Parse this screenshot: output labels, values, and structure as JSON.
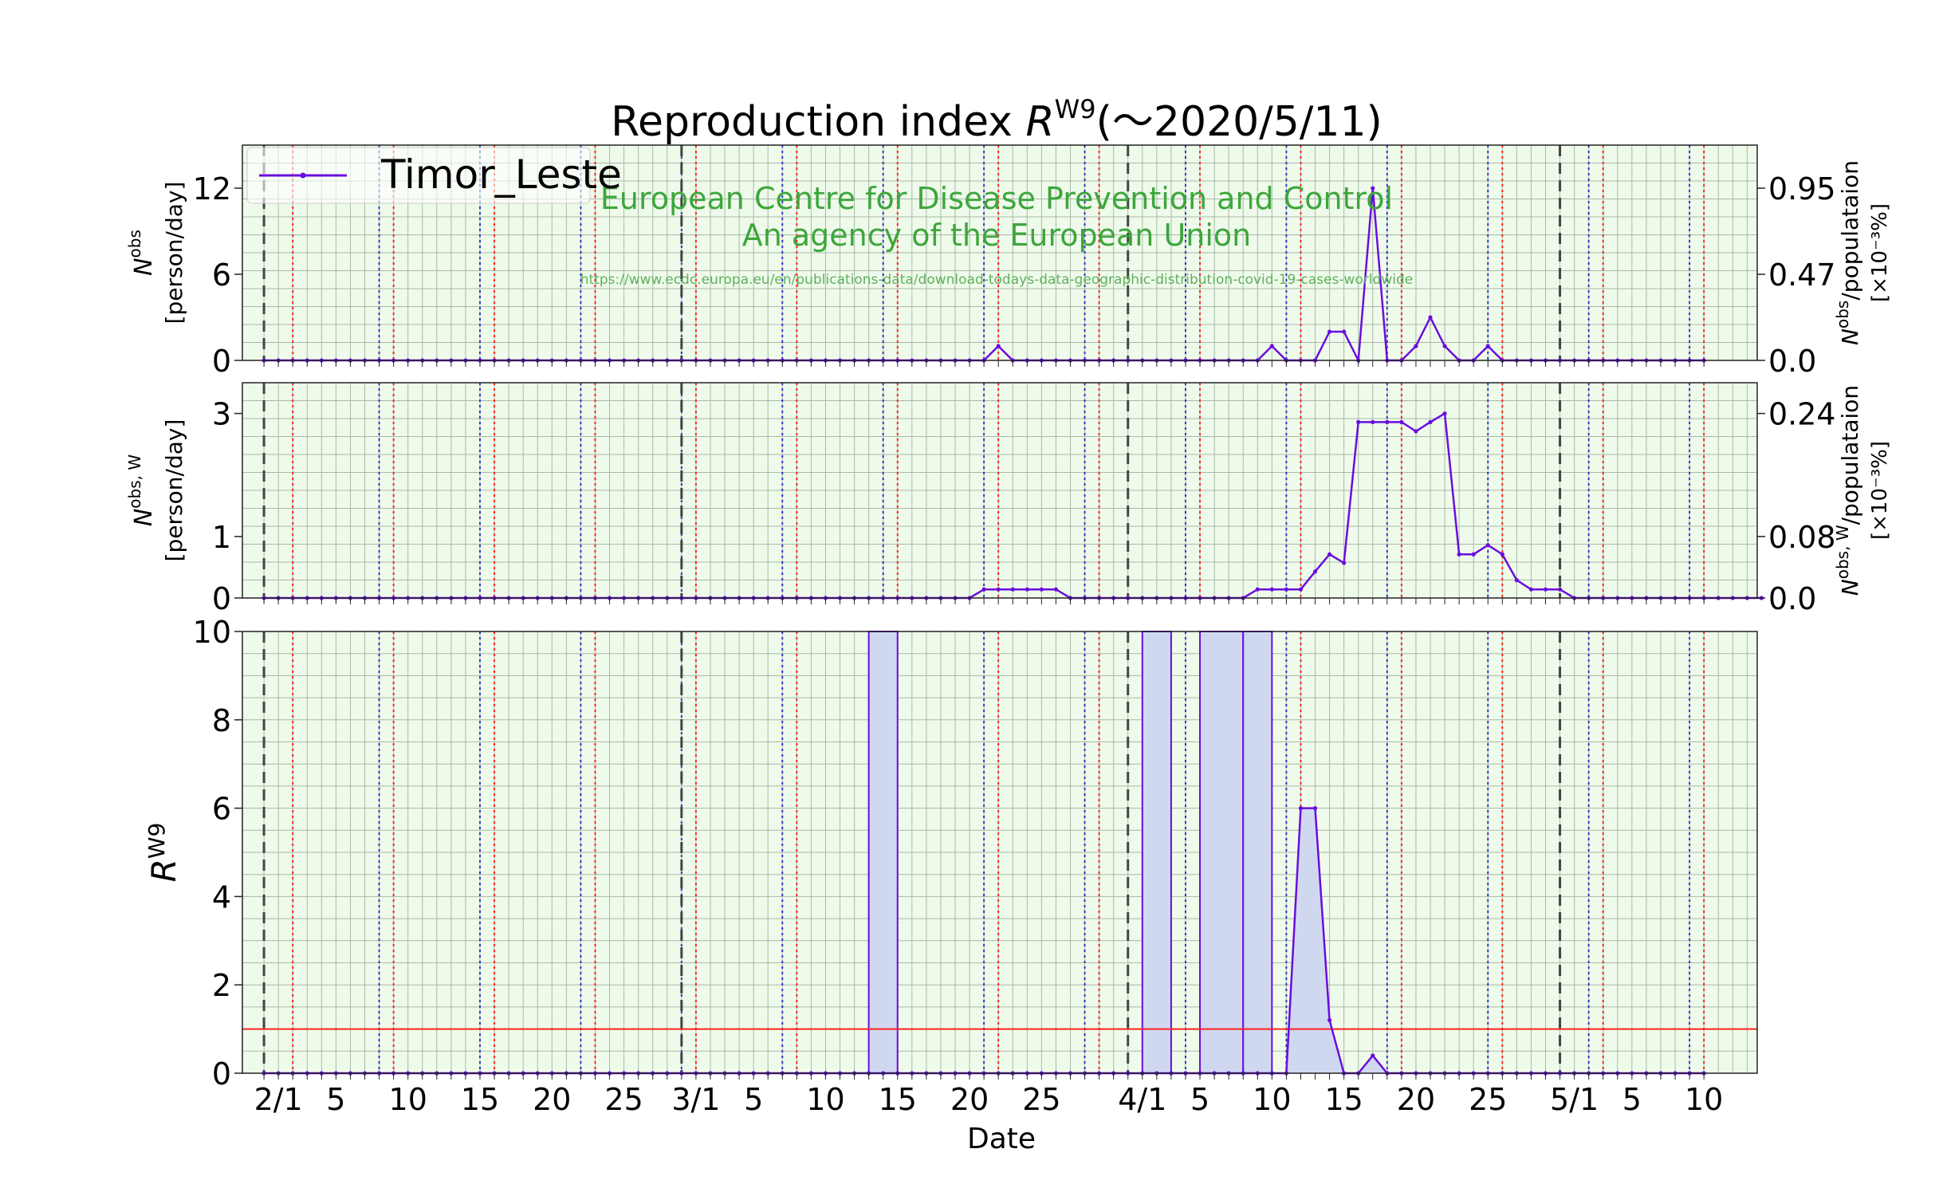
{
  "title": {
    "main": "Reproduction index ",
    "r": "R",
    "sup": "W9",
    "tail": "(〜2020/5/11)"
  },
  "legend": {
    "label": "Timor_Leste"
  },
  "watermark": {
    "line1": "European Centre for Disease Prevention and Control",
    "line2": "An agency of the European Union",
    "url": "https://www.ecdc.europa.eu/en/publications-data/download-todays-data-geographic-distribution-covid-19-cases-worldwide"
  },
  "xaxis": {
    "label": "Date",
    "tick_days": [
      1,
      5,
      10,
      15,
      20,
      25,
      30,
      34,
      39,
      44,
      49,
      54,
      61,
      65,
      70,
      75,
      80,
      85,
      91,
      95,
      100
    ],
    "tick_labels": [
      "2/1",
      "5",
      "10",
      "15",
      "20",
      "25",
      "3/1",
      "5",
      "10",
      "15",
      "20",
      "25",
      "4/1",
      "5",
      "10",
      "15",
      "20",
      "25",
      "5/1",
      "5",
      "10"
    ]
  },
  "colors": {
    "line": "#6a0ddf",
    "bg": "#effbea",
    "grid": "#a8b8a8",
    "redline": "#ff2222",
    "fill": "#d0d8f0",
    "watermark": "#3da63d"
  },
  "chart_data": [
    {
      "type": "line",
      "panel": "top",
      "ylabel_main": "N",
      "ylabel_sup": "obs",
      "ylabel_unit": "[person/day]",
      "ylabel_right": "N",
      "ylabel_right_sup": "obs",
      "ylabel_right_rest": "/populataion",
      "ylabel_right_unit": "[×10⁻³%]",
      "ylim": [
        0,
        15
      ],
      "yticks": [
        0,
        6,
        12
      ],
      "ytick_labels": [
        "0",
        "6",
        "12"
      ],
      "yticks_right": [
        0,
        6,
        12
      ],
      "ytick_labels_right": [
        "0.0",
        "0.47",
        "0.95"
      ],
      "x_start_day": 0,
      "values": [
        0,
        0,
        0,
        0,
        0,
        0,
        0,
        0,
        0,
        0,
        0,
        0,
        0,
        0,
        0,
        0,
        0,
        0,
        0,
        0,
        0,
        0,
        0,
        0,
        0,
        0,
        0,
        0,
        0,
        0,
        0,
        0,
        0,
        0,
        0,
        0,
        0,
        0,
        0,
        0,
        0,
        0,
        0,
        0,
        0,
        0,
        0,
        0,
        0,
        0,
        0,
        1,
        0,
        0,
        0,
        0,
        0,
        0,
        0,
        0,
        0,
        0,
        0,
        0,
        0,
        0,
        0,
        0,
        0,
        0,
        1,
        0,
        0,
        0,
        2,
        2,
        0,
        12,
        0,
        0,
        1,
        3,
        1,
        0,
        0,
        1,
        0,
        0,
        0,
        0,
        0,
        0,
        0,
        0,
        0,
        0,
        0,
        0,
        0,
        0,
        0
      ]
    },
    {
      "type": "line",
      "panel": "middle",
      "ylabel_main": "N",
      "ylabel_sup": "obs, W",
      "ylabel_unit": "[person/day]",
      "ylabel_right": "N",
      "ylabel_right_sup": "obs, W",
      "ylabel_right_rest": "/populataion",
      "ylabel_right_unit": "[×10⁻³%]",
      "ylim": [
        0,
        3.5
      ],
      "yticks": [
        0,
        1,
        3
      ],
      "ytick_labels": [
        "0",
        "1",
        "3"
      ],
      "yticks_right": [
        0,
        1,
        3
      ],
      "ytick_labels_right": [
        "0.0",
        "0.08",
        "0.24"
      ],
      "x_start_day": 0,
      "values": [
        0,
        0,
        0,
        0,
        0,
        0,
        0,
        0,
        0,
        0,
        0,
        0,
        0,
        0,
        0,
        0,
        0,
        0,
        0,
        0,
        0,
        0,
        0,
        0,
        0,
        0,
        0,
        0,
        0,
        0,
        0,
        0,
        0,
        0,
        0,
        0,
        0,
        0,
        0,
        0,
        0,
        0,
        0,
        0,
        0,
        0,
        0,
        0,
        0,
        0,
        0.14,
        0.14,
        0.14,
        0.14,
        0.14,
        0.14,
        0,
        0,
        0,
        0,
        0,
        0,
        0,
        0,
        0,
        0,
        0,
        0,
        0,
        0.14,
        0.14,
        0.14,
        0.14,
        0.43,
        0.71,
        0.57,
        2.86,
        2.86,
        2.86,
        2.86,
        2.71,
        2.86,
        3.0,
        0.71,
        0.71,
        0.86,
        0.71,
        0.29,
        0.14,
        0.14,
        0.14,
        0,
        0,
        0,
        0,
        0,
        0,
        0,
        0,
        0,
        0,
        0,
        0,
        0,
        0
      ]
    },
    {
      "type": "area",
      "panel": "bottom",
      "ylabel_main": "R",
      "ylabel_sup": "W9",
      "ylim": [
        0,
        10
      ],
      "yticks": [
        0,
        2,
        4,
        6,
        8,
        10
      ],
      "ytick_labels": [
        "0",
        "2",
        "4",
        "6",
        "8",
        "10"
      ],
      "reference_line": 1,
      "x_start_day": 0,
      "values": [
        0,
        0,
        0,
        0,
        0,
        0,
        0,
        0,
        0,
        0,
        0,
        0,
        0,
        0,
        0,
        0,
        0,
        0,
        0,
        0,
        0,
        0,
        0,
        0,
        0,
        0,
        0,
        0,
        0,
        0,
        0,
        0,
        0,
        0,
        0,
        0,
        0,
        0,
        0,
        0,
        0,
        0,
        0,
        0,
        0,
        0,
        0,
        0,
        0,
        0,
        0,
        0,
        0,
        0,
        0,
        0,
        0,
        0,
        0,
        0,
        0,
        0,
        0,
        0,
        0,
        0,
        0,
        0,
        0,
        0,
        0,
        0,
        6,
        6,
        1.2,
        0,
        0,
        0.4,
        0,
        0,
        0,
        0,
        0,
        0,
        0,
        0,
        0,
        0,
        0,
        0,
        0,
        0,
        0,
        0,
        0,
        0,
        0,
        0,
        0,
        0,
        0
      ],
      "spikes": [
        [
          42,
          44
        ],
        [
          61,
          63
        ],
        [
          65,
          68
        ],
        [
          68,
          70
        ]
      ]
    }
  ]
}
